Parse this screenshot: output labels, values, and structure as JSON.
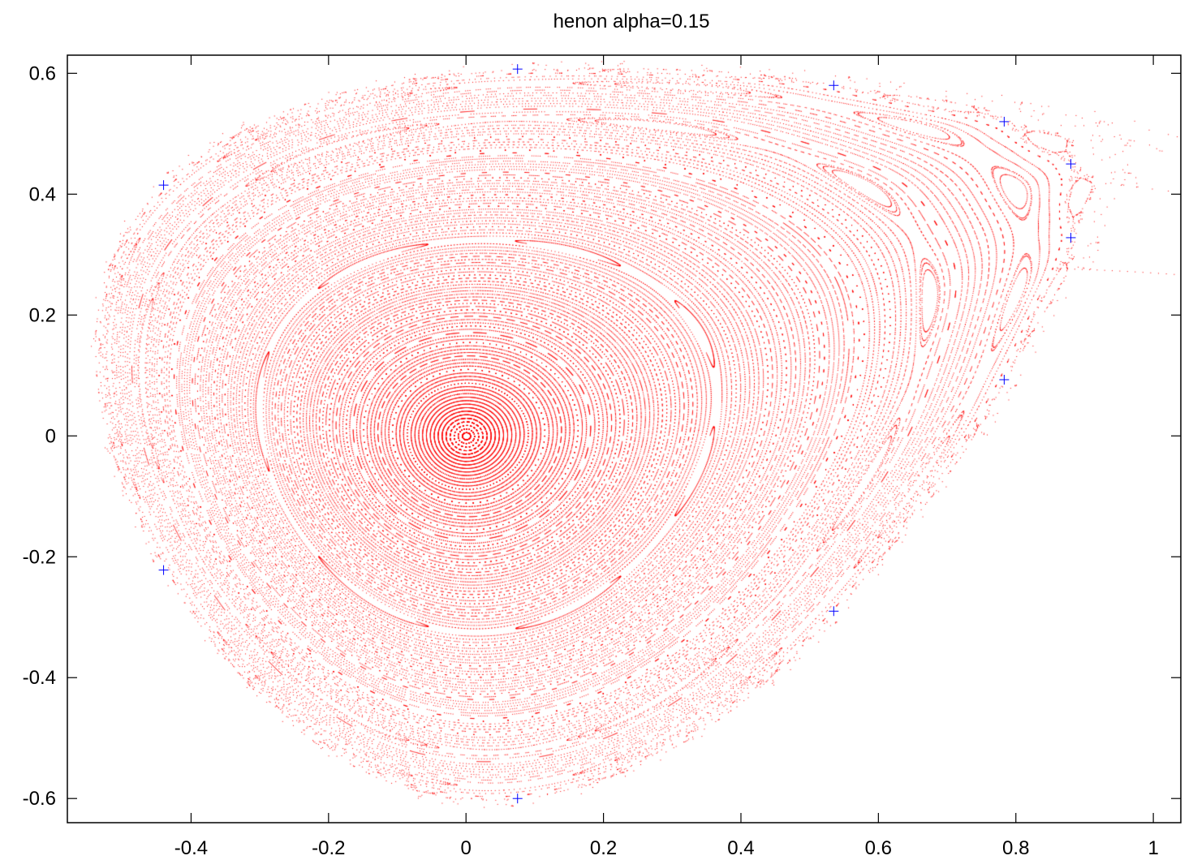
{
  "chart_data": {
    "type": "scatter",
    "title": "henon alpha=0.15",
    "xlabel": "",
    "ylabel": "",
    "xlim": [
      -0.58,
      1.04
    ],
    "ylim": [
      -0.64,
      0.63
    ],
    "xticks": [
      -0.4,
      -0.2,
      0,
      0.2,
      0.4,
      0.6,
      0.8,
      1
    ],
    "xtick_labels": [
      "-0.4",
      "-0.2",
      "0",
      "0.2",
      "0.4",
      "0.6",
      "0.8",
      "1"
    ],
    "yticks": [
      -0.6,
      -0.4,
      -0.2,
      0,
      0.2,
      0.4,
      0.6
    ],
    "ytick_labels": [
      "-0.6",
      "-0.4",
      "-0.2",
      "0",
      "0.2",
      "0.4",
      "0.6"
    ],
    "grid": false,
    "legend": "none",
    "map": {
      "alpha": 0.15,
      "orbit_seeds": 150,
      "iterations_per_orbit": 700
    },
    "series": [
      {
        "marker": "dot",
        "color": "#ff0000",
        "description": "Henon area-preserving map orbits (Poincare section)"
      },
      {
        "marker": "plus",
        "color": "#0000ff",
        "points": [
          [
            0.075,
            0.607
          ],
          [
            0.535,
            0.58
          ],
          [
            0.783,
            0.52
          ],
          [
            0.88,
            0.45
          ],
          [
            -0.44,
            0.415
          ],
          [
            0.88,
            0.328
          ],
          [
            0.783,
            0.093
          ],
          [
            -0.44,
            -0.222
          ],
          [
            0.535,
            -0.29
          ],
          [
            0.075,
            -0.6
          ]
        ]
      }
    ],
    "colors": {
      "points": "#ff0000",
      "markers": "#0000ff",
      "axes": "#000000",
      "background": "#ffffff"
    }
  }
}
